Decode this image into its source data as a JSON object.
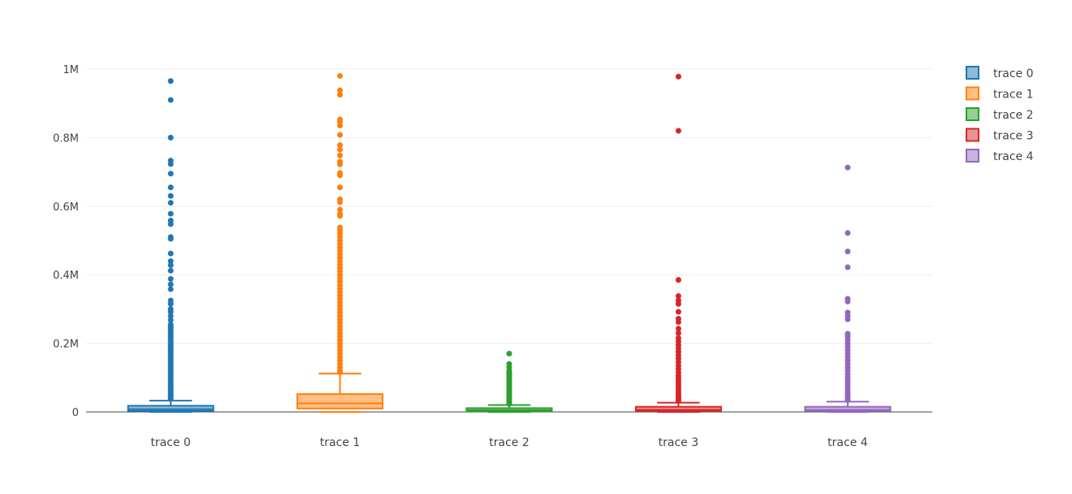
{
  "chart_data": {
    "type": "box",
    "title": "",
    "xlabel": "",
    "ylabel": "",
    "ylim": [
      0,
      1000000
    ],
    "grid": true,
    "legend_position": "top-right",
    "y_ticks": [
      {
        "value": 0,
        "label": "0"
      },
      {
        "value": 200000,
        "label": "0.2M"
      },
      {
        "value": 400000,
        "label": "0.4M"
      },
      {
        "value": 600000,
        "label": "0.6M"
      },
      {
        "value": 800000,
        "label": "0.8M"
      },
      {
        "value": 1000000,
        "label": "1M"
      }
    ],
    "categories": [
      "trace 0",
      "trace 1",
      "trace 2",
      "trace 3",
      "trace 4"
    ],
    "series": [
      {
        "name": "trace 0",
        "color": "#1f77b4",
        "min": 0,
        "q1": 3000,
        "median": 8000,
        "q3": 18000,
        "whisker_high": 33000,
        "outliers": [
          965000,
          910000,
          800000,
          733000,
          723000,
          695000,
          655000,
          630000,
          610000,
          578000,
          558000,
          548000,
          510000,
          505000,
          462000,
          440000,
          428000,
          412000,
          388000,
          372000,
          358000,
          325000,
          315000,
          300000,
          292000,
          280000,
          268000,
          255000,
          250000,
          245000,
          240000,
          235000,
          230000,
          225000,
          220000,
          215000,
          210000,
          205000,
          200000,
          195000,
          190000,
          185000,
          180000,
          175000,
          170000,
          165000,
          160000,
          155000,
          150000,
          145000,
          140000,
          135000,
          130000,
          125000,
          120000,
          115000,
          110000,
          105000,
          100000,
          95000,
          90000,
          85000,
          80000,
          75000,
          70000,
          65000,
          60000,
          55000,
          50000,
          46000,
          42000,
          38000
        ]
      },
      {
        "name": "trace 1",
        "color": "#ff7f0e",
        "min": 0,
        "q1": 10000,
        "median": 25000,
        "q3": 52000,
        "whisker_high": 112000,
        "outliers": [
          980000,
          938000,
          925000,
          853000,
          845000,
          835000,
          808000,
          778000,
          765000,
          748000,
          730000,
          722000,
          697000,
          690000,
          655000,
          620000,
          612000,
          590000,
          578000,
          572000,
          538000,
          530000,
          520000,
          510000,
          500000,
          490000,
          480000,
          470000,
          460000,
          450000,
          440000,
          430000,
          420000,
          410000,
          400000,
          390000,
          380000,
          370000,
          360000,
          350000,
          340000,
          330000,
          320000,
          310000,
          300000,
          290000,
          280000,
          270000,
          260000,
          250000,
          240000,
          230000,
          220000,
          210000,
          200000,
          190000,
          180000,
          170000,
          160000,
          150000,
          140000,
          130000,
          122000,
          116000
        ]
      },
      {
        "name": "trace 2",
        "color": "#2ca02c",
        "min": 0,
        "q1": 2000,
        "median": 5000,
        "q3": 11000,
        "whisker_high": 20000,
        "outliers": [
          170000,
          140000,
          130000,
          120000,
          115000,
          110000,
          105000,
          100000,
          95000,
          90000,
          85000,
          80000,
          75000,
          70000,
          65000,
          60000,
          55000,
          50000,
          45000,
          40000,
          36000,
          32000,
          28000,
          24000
        ]
      },
      {
        "name": "trace 3",
        "color": "#d62728",
        "min": 0,
        "q1": 3000,
        "median": 6000,
        "q3": 15000,
        "whisker_high": 27000,
        "outliers": [
          978000,
          820000,
          385000,
          338000,
          325000,
          315000,
          292000,
          272000,
          262000,
          243000,
          230000,
          215000,
          205000,
          195000,
          185000,
          175000,
          165000,
          155000,
          145000,
          135000,
          125000,
          115000,
          105000,
          98000,
          90000,
          82000,
          75000,
          68000,
          62000,
          56000,
          50000,
          45000,
          40000,
          36000,
          32000
        ]
      },
      {
        "name": "trace 4",
        "color": "#9467bd",
        "min": 0,
        "q1": 3000,
        "median": 6000,
        "q3": 15000,
        "whisker_high": 30000,
        "outliers": [
          713000,
          522000,
          468000,
          422000,
          330000,
          322000,
          290000,
          280000,
          270000,
          228000,
          220000,
          210000,
          200000,
          190000,
          180000,
          170000,
          160000,
          150000,
          140000,
          130000,
          120000,
          110000,
          100000,
          92000,
          84000,
          76000,
          68000,
          60000,
          54000,
          48000,
          43000,
          38000,
          34000
        ]
      }
    ]
  }
}
